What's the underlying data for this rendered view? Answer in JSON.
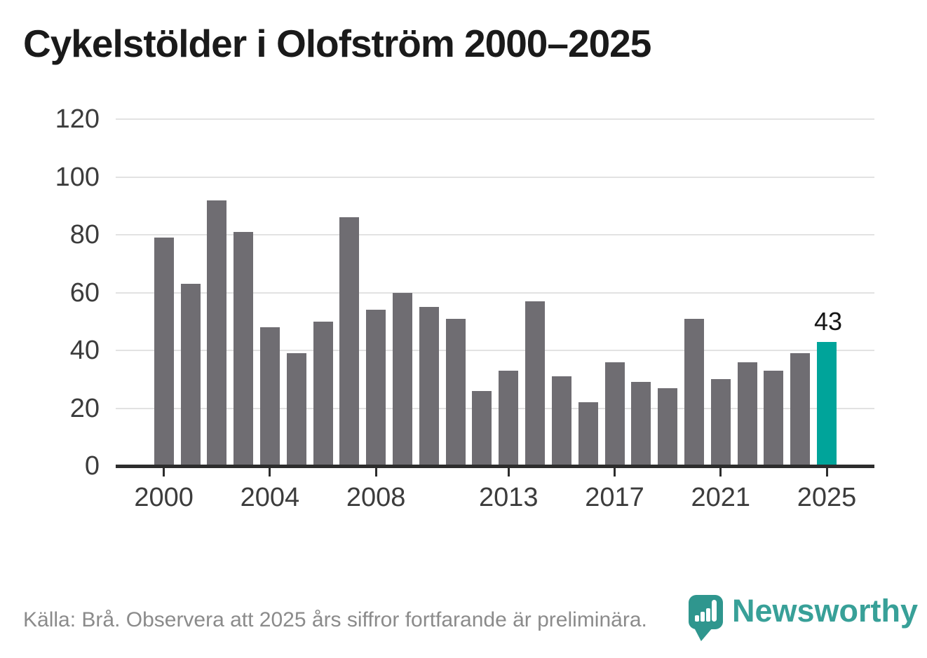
{
  "title": "Cykelstölder i Olofström 2000–2025",
  "chart_data": {
    "type": "bar",
    "title": "Cykelstölder i Olofström 2000–2025",
    "categories": [
      2000,
      2001,
      2002,
      2003,
      2004,
      2005,
      2006,
      2007,
      2008,
      2009,
      2010,
      2011,
      2012,
      2013,
      2014,
      2015,
      2016,
      2017,
      2018,
      2019,
      2020,
      2021,
      2022,
      2023,
      2024,
      2025
    ],
    "values": [
      79,
      63,
      92,
      81,
      48,
      39,
      50,
      86,
      54,
      60,
      55,
      51,
      26,
      33,
      57,
      31,
      22,
      36,
      29,
      27,
      51,
      30,
      36,
      33,
      39,
      43
    ],
    "highlight_category": 2025,
    "annotation": {
      "text": "43",
      "category": 2025
    },
    "xlabel": "",
    "ylabel": "",
    "ylim": [
      0,
      120
    ],
    "ytick_values": [
      0,
      20,
      40,
      60,
      80,
      100,
      120
    ],
    "ytick_labels": [
      "0",
      "20",
      "40",
      "60",
      "80",
      "100",
      "120"
    ],
    "xtick_values": [
      2000,
      2004,
      2008,
      2013,
      2017,
      2021,
      2025
    ],
    "xtick_labels": [
      "2000",
      "2004",
      "2008",
      "2013",
      "2017",
      "2021",
      "2025"
    ],
    "grid": "horizontal",
    "legend": "none",
    "colors": {
      "bar": "#6f6d72",
      "highlight": "#00a49a",
      "axis": "#2d2d2d",
      "gridline": "#e2e2e2",
      "tick_label": "#3c3c3c",
      "value_label": "#161616"
    }
  },
  "footer": {
    "source_note": "Källa: Brå. Observera att 2025 års siffror fortfarande är preliminära."
  },
  "branding": {
    "wordmark": "Newsworthy",
    "wordmark_color": "#38a098",
    "logo_color": "#2f968e",
    "logo_icon": "newsworthy-pin-barchart-icon"
  }
}
